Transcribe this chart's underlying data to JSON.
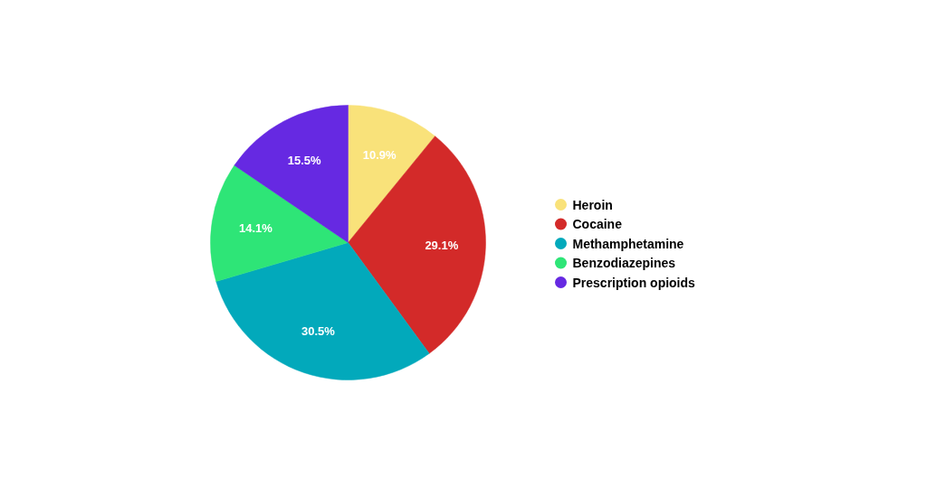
{
  "chart_data": {
    "type": "pie",
    "categories": [
      "Heroin",
      "Cocaine",
      "Methamphetamine",
      "Benzodiazepines",
      "Prescription opioids"
    ],
    "values": [
      10.9,
      29.1,
      30.5,
      14.1,
      15.5
    ],
    "colors": [
      "#f9e27a",
      "#d32a29",
      "#02a9bb",
      "#2ee577",
      "#6629e2"
    ],
    "value_labels": [
      "10.9%",
      "29.1%",
      "30.5%",
      "14.1%",
      "15.5%"
    ],
    "legend": "right"
  }
}
